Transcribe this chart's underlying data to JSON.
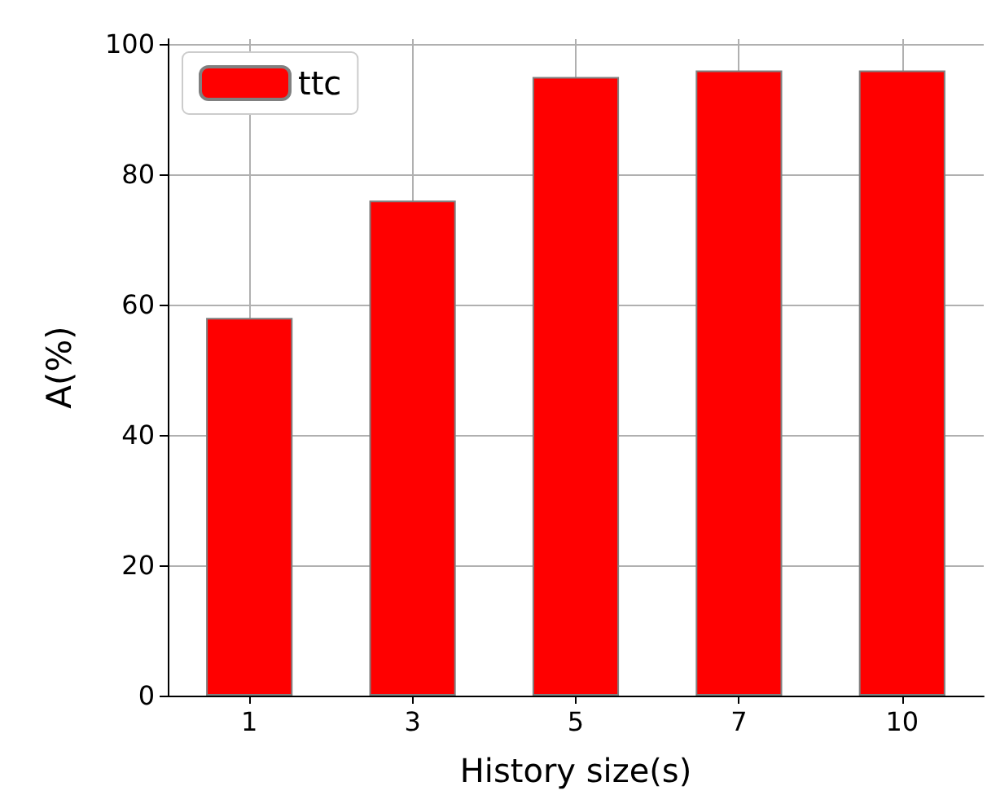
{
  "chart_data": {
    "type": "bar",
    "xlabel": "History size(s)",
    "ylabel": "A(%)",
    "categories": [
      "1",
      "3",
      "5",
      "7",
      "10"
    ],
    "series": [
      {
        "name": "ttc",
        "color": "#ff0000",
        "values": [
          58,
          76,
          95,
          96,
          96
        ]
      }
    ],
    "ylim": [
      0,
      100.8
    ],
    "yticks": [
      0,
      20,
      40,
      60,
      80,
      100
    ],
    "grid": true,
    "legend": "top left"
  }
}
